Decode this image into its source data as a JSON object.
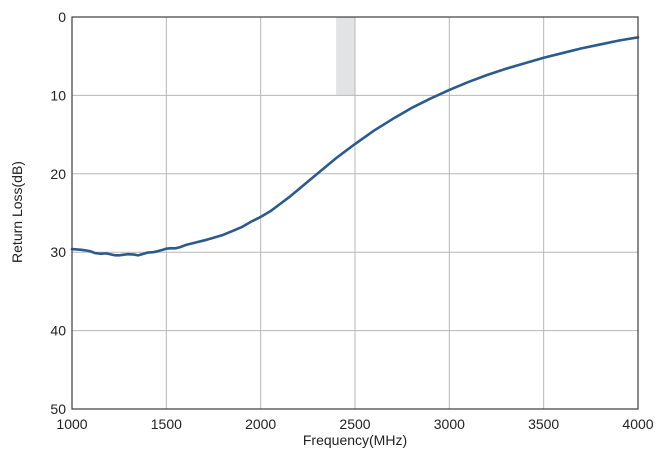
{
  "chart_data": {
    "type": "line",
    "title": "",
    "xlabel": "Frequency(MHz)",
    "ylabel": "Return Loss(dB)",
    "xlim": [
      1000,
      4000
    ],
    "ylim": [
      0,
      50
    ],
    "y_inverted": true,
    "xticks": [
      1000,
      1500,
      2000,
      2500,
      3000,
      3500,
      4000
    ],
    "yticks": [
      0,
      10,
      20,
      30,
      40,
      50
    ],
    "grid": true,
    "highlight_band": {
      "x": [
        2400,
        2500
      ],
      "y": [
        0,
        10
      ],
      "color": "#e2e3e5"
    },
    "series": [
      {
        "color": "#2b5b8e",
        "x": [
          1000,
          1050,
          1080,
          1100,
          1120,
          1150,
          1180,
          1200,
          1230,
          1250,
          1280,
          1300,
          1330,
          1350,
          1380,
          1400,
          1430,
          1450,
          1480,
          1500,
          1520,
          1550,
          1580,
          1600,
          1650,
          1700,
          1750,
          1800,
          1850,
          1900,
          1950,
          2000,
          2050,
          2100,
          2150,
          2200,
          2250,
          2300,
          2350,
          2400,
          2450,
          2500,
          2600,
          2700,
          2800,
          2900,
          3000,
          3100,
          3200,
          3300,
          3400,
          3500,
          3600,
          3700,
          3800,
          3900,
          4000
        ],
        "values": [
          29.6,
          29.7,
          29.8,
          29.9,
          30.1,
          30.2,
          30.15,
          30.25,
          30.4,
          30.4,
          30.3,
          30.25,
          30.3,
          30.4,
          30.2,
          30.05,
          30.0,
          29.9,
          29.7,
          29.55,
          29.5,
          29.5,
          29.3,
          29.1,
          28.8,
          28.5,
          28.15,
          27.8,
          27.3,
          26.8,
          26.1,
          25.5,
          24.8,
          23.9,
          23.0,
          22.0,
          21.0,
          20.0,
          19.0,
          18.0,
          17.1,
          16.2,
          14.5,
          13.0,
          11.6,
          10.4,
          9.3,
          8.3,
          7.4,
          6.6,
          5.9,
          5.2,
          4.6,
          4.0,
          3.5,
          3.0,
          2.6
        ]
      }
    ]
  }
}
